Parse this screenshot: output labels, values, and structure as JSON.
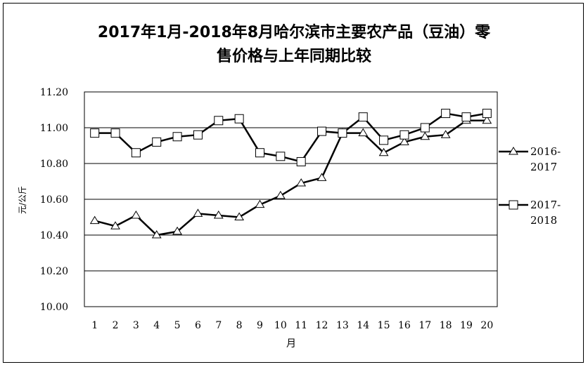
{
  "chart_data": {
    "type": "line",
    "title_line1": "2017年1月-2018年8月哈尔滨市主要农产品（豆油）零",
    "title_line2": "售价格与上年同期比较",
    "xlabel": "月",
    "ylabel": "元/公斤",
    "ylim": [
      10.0,
      11.2
    ],
    "yticks": [
      "10.00",
      "10.20",
      "10.40",
      "10.60",
      "10.80",
      "11.00",
      "11.20"
    ],
    "categories": [
      "1",
      "2",
      "3",
      "4",
      "5",
      "6",
      "7",
      "8",
      "9",
      "10",
      "11",
      "12",
      "13",
      "14",
      "15",
      "16",
      "17",
      "18",
      "19",
      "20"
    ],
    "grid": true,
    "legend_position": "right",
    "series": [
      {
        "name_line1": "2016-",
        "name_line2": "2017",
        "marker": "triangle",
        "values": [
          10.48,
          10.45,
          10.51,
          10.4,
          10.42,
          10.52,
          10.51,
          10.5,
          10.57,
          10.62,
          10.69,
          10.72,
          10.97,
          10.97,
          10.86,
          10.92,
          10.95,
          10.96,
          11.04,
          11.04
        ]
      },
      {
        "name_line1": "2017-",
        "name_line2": "2018",
        "marker": "square",
        "values": [
          10.97,
          10.97,
          10.86,
          10.92,
          10.95,
          10.96,
          11.04,
          11.05,
          10.86,
          10.84,
          10.81,
          10.98,
          10.97,
          11.06,
          10.93,
          10.96,
          11.0,
          11.08,
          11.06,
          11.08
        ]
      }
    ]
  }
}
